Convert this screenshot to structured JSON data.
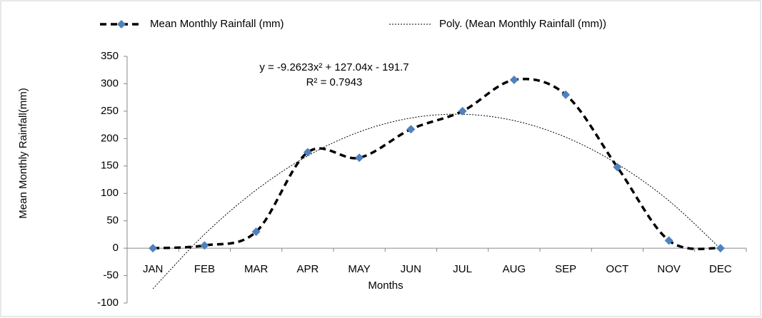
{
  "chart_data": {
    "type": "line",
    "categories": [
      "JAN",
      "FEB",
      "MAR",
      "APR",
      "MAY",
      "JUN",
      "JUL",
      "AUG",
      "SEP",
      "OCT",
      "NOV",
      "DEC"
    ],
    "series": [
      {
        "name": "Mean Monthly Rainfall (mm)",
        "color": "#000000",
        "marker_color": "#4f81bd",
        "style": "dashed",
        "values": [
          0,
          5,
          30,
          175,
          165,
          217,
          250,
          307,
          280,
          148,
          14,
          0
        ]
      },
      {
        "name": "Poly. (Mean Monthly Rainfall (mm))",
        "color": "#000000",
        "style": "dotted",
        "values": [
          -73.9,
          25.4,
          106.1,
          168.4,
          212.2,
          237.5,
          244.4,
          232.7,
          202.5,
          153.8,
          86.6,
          -0.9
        ]
      }
    ],
    "ylim": [
      -100,
      350
    ],
    "yticks": [
      -100,
      -50,
      0,
      50,
      100,
      150,
      200,
      250,
      300,
      350
    ],
    "x_label": "Months",
    "y_label": "Mean Monthly Rainfall(mm)",
    "annotations": [
      "y = -9.2623x² + 127.04x - 191.7",
      "R² = 0.7943"
    ],
    "legend": "top"
  }
}
